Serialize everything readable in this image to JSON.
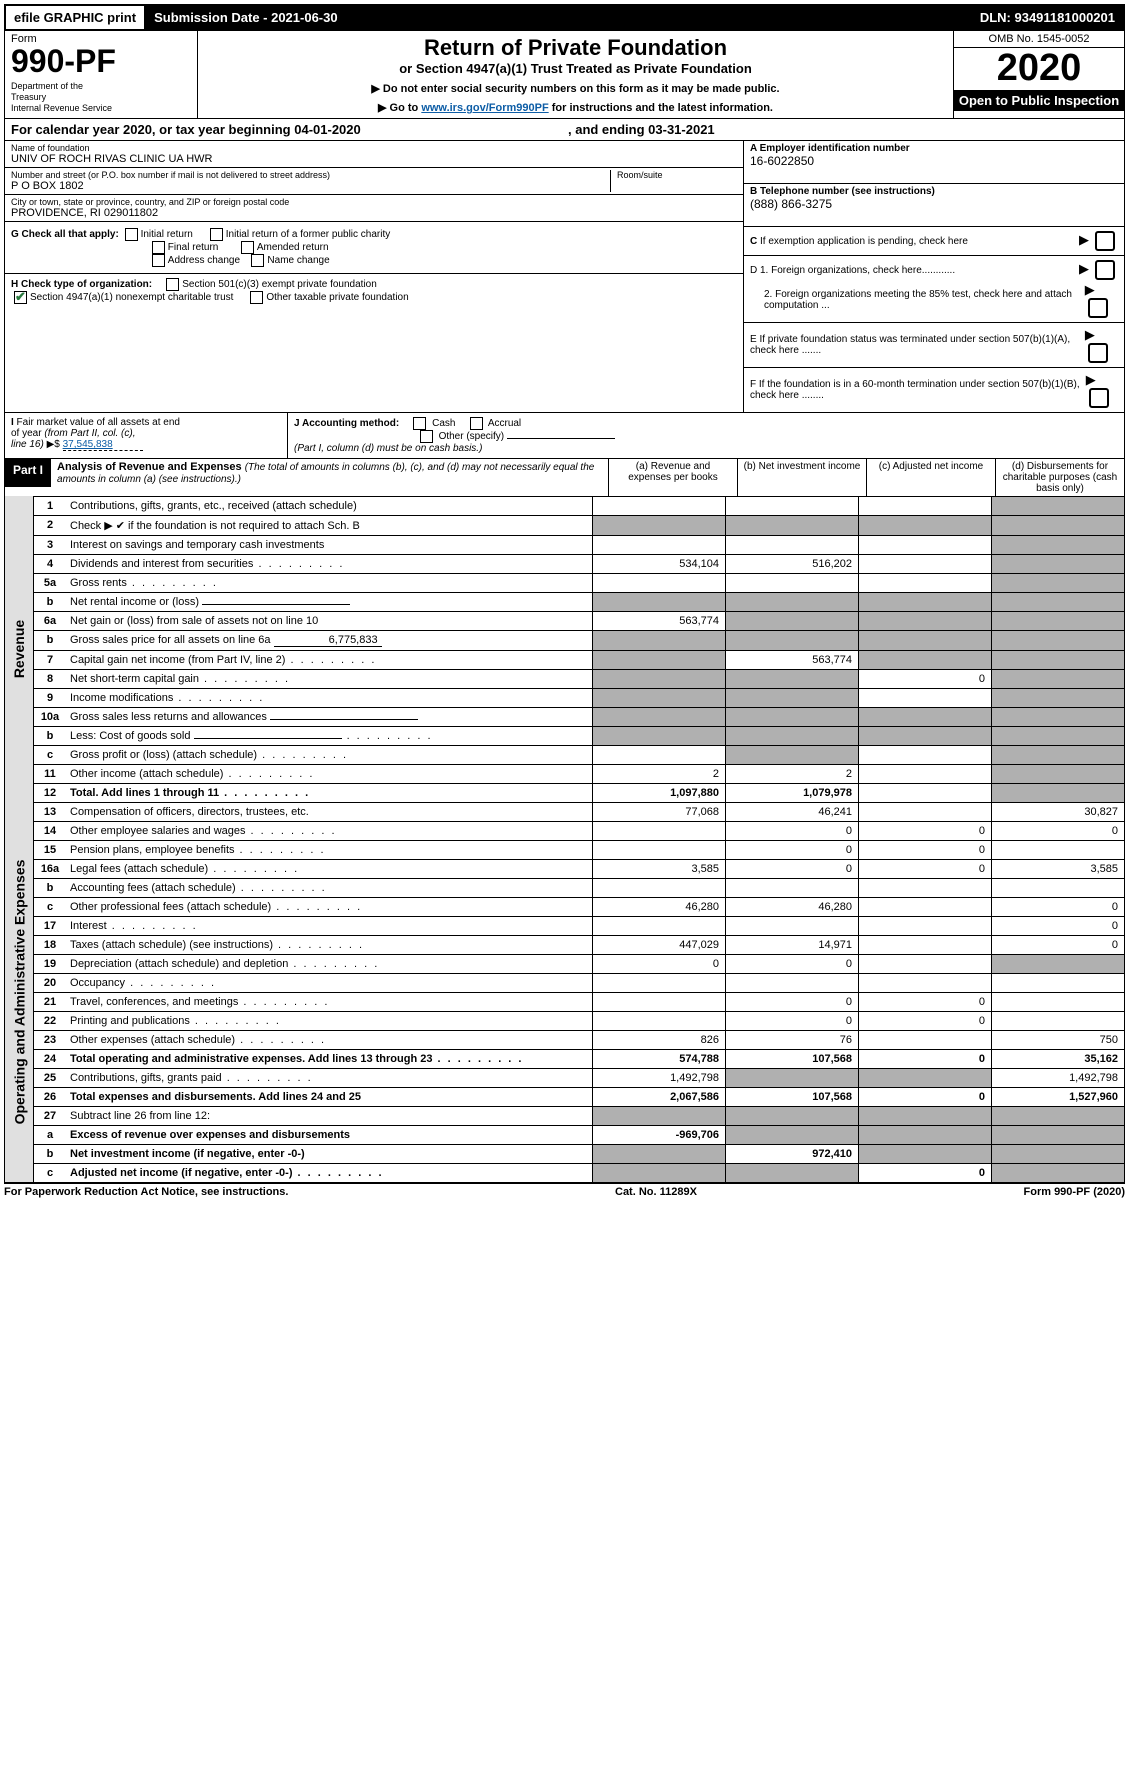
{
  "topbar": {
    "efile": "efile GRAPHIC print",
    "submission": "Submission Date - 2021-06-30",
    "dln": "DLN: 93491181000201"
  },
  "header": {
    "form_label": "Form",
    "form_number": "990-PF",
    "dept": "Department of the Treasury\nInternal Revenue Service",
    "title": "Return of Private Foundation",
    "subtitle": "or Section 4947(a)(1) Trust Treated as Private Foundation",
    "notice1": "▶ Do not enter social security numbers on this form as it may be made public.",
    "notice2_pre": "▶ Go to ",
    "notice2_link": "www.irs.gov/Form990PF",
    "notice2_post": " for instructions and the latest information.",
    "omb": "OMB No. 1545-0052",
    "year": "2020",
    "open": "Open to Public Inspection"
  },
  "cal": {
    "text_pre": "For calendar year 2020, or tax year beginning ",
    "begin": "04-01-2020",
    "text_mid": " , and ending ",
    "end": "03-31-2021"
  },
  "info": {
    "name_label": "Name of foundation",
    "name": "UNIV OF ROCH RIVAS CLINIC UA HWR",
    "addr_label": "Number and street (or P.O. box number if mail is not delivered to street address)",
    "addr": "P O BOX 1802",
    "room_label": "Room/suite",
    "city_label": "City or town, state or province, country, and ZIP or foreign postal code",
    "city": "PROVIDENCE, RI  029011802",
    "ein_label": "A Employer identification number",
    "ein": "16-6022850",
    "phone_label": "B Telephone number (see instructions)",
    "phone": "(888) 866-3275",
    "c_label": "C If exemption application is pending, check here",
    "d1_label": "D 1. Foreign organizations, check here............",
    "d2_label": "2. Foreign organizations meeting the 85% test, check here and attach computation ...",
    "e_label": "E If private foundation status was terminated under section 507(b)(1)(A), check here .......",
    "f_label": "F If the foundation is in a 60-month termination under section 507(b)(1)(B), check here ........"
  },
  "g": {
    "label": "G Check all that apply:",
    "initial": "Initial return",
    "initial_former": "Initial return of a former public charity",
    "final": "Final return",
    "amended": "Amended return",
    "address": "Address change",
    "name": "Name change"
  },
  "h": {
    "label": "H Check type of organization:",
    "s501": "Section 501(c)(3) exempt private foundation",
    "s4947": "Section 4947(a)(1) nonexempt charitable trust",
    "other": "Other taxable private foundation"
  },
  "i": {
    "label": "I Fair market value of all assets at end of year (from Part II, col. (c), line 16) ▶$",
    "value": "37,545,838"
  },
  "j": {
    "label": "J Accounting method:",
    "cash": "Cash",
    "accrual": "Accrual",
    "other": "Other (specify)",
    "note": "(Part I, column (d) must be on cash basis.)"
  },
  "part1": {
    "tag": "Part I",
    "title": "Analysis of Revenue and Expenses",
    "subtitle": "(The total of amounts in columns (b), (c), and (d) may not necessarily equal the amounts in column (a) (see instructions).)",
    "col_a": "(a) Revenue and expenses per books",
    "col_b": "(b) Net investment income",
    "col_c": "(c) Adjusted net income",
    "col_d": "(d) Disbursements for charitable purposes (cash basis only)",
    "revenue_label": "Revenue",
    "expenses_label": "Operating and Administrative Expenses"
  },
  "rows_rev": [
    {
      "n": "1",
      "txt": "Contributions, gifts, grants, etc., received (attach schedule)",
      "a": "",
      "b": "",
      "c": "",
      "d": "",
      "shade_d": true
    },
    {
      "n": "2",
      "txt": "Check ▶ ✔ if the foundation is not required to attach Sch. B",
      "a": "",
      "b": "",
      "c": "",
      "d": "",
      "shade_a": true,
      "shade_b": true,
      "shade_c": true,
      "shade_d": true
    },
    {
      "n": "3",
      "txt": "Interest on savings and temporary cash investments",
      "a": "",
      "b": "",
      "c": "",
      "d": "",
      "shade_d": true
    },
    {
      "n": "4",
      "txt": "Dividends and interest from securities",
      "a": "534,104",
      "b": "516,202",
      "c": "",
      "d": "",
      "shade_d": true,
      "dots": true
    },
    {
      "n": "5a",
      "txt": "Gross rents",
      "a": "",
      "b": "",
      "c": "",
      "d": "",
      "shade_d": true,
      "dots": true
    },
    {
      "n": "b",
      "txt": "Net rental income or (loss)",
      "a": "",
      "b": "",
      "c": "",
      "d": "",
      "shade_a": true,
      "shade_b": true,
      "shade_c": true,
      "shade_d": true,
      "inline_field": true
    },
    {
      "n": "6a",
      "txt": "Net gain or (loss) from sale of assets not on line 10",
      "a": "563,774",
      "b": "",
      "c": "",
      "d": "",
      "shade_b": true,
      "shade_c": true,
      "shade_d": true
    },
    {
      "n": "b",
      "txt": "Gross sales price for all assets on line 6a",
      "a": "",
      "b": "",
      "c": "",
      "d": "",
      "shade_a": true,
      "shade_b": true,
      "shade_c": true,
      "shade_d": true,
      "inline_val": "6,775,833"
    },
    {
      "n": "7",
      "txt": "Capital gain net income (from Part IV, line 2)",
      "a": "",
      "b": "563,774",
      "c": "",
      "d": "",
      "shade_a": true,
      "shade_c": true,
      "shade_d": true,
      "dots": true
    },
    {
      "n": "8",
      "txt": "Net short-term capital gain",
      "a": "",
      "b": "",
      "c": "0",
      "d": "",
      "shade_a": true,
      "shade_b": true,
      "shade_d": true,
      "dots": true
    },
    {
      "n": "9",
      "txt": "Income modifications",
      "a": "",
      "b": "",
      "c": "",
      "d": "",
      "shade_a": true,
      "shade_b": true,
      "shade_d": true,
      "dots": true
    },
    {
      "n": "10a",
      "txt": "Gross sales less returns and allowances",
      "a": "",
      "b": "",
      "c": "",
      "d": "",
      "shade_a": true,
      "shade_b": true,
      "shade_c": true,
      "shade_d": true,
      "inline_field": true
    },
    {
      "n": "b",
      "txt": "Less: Cost of goods sold",
      "a": "",
      "b": "",
      "c": "",
      "d": "",
      "shade_a": true,
      "shade_b": true,
      "shade_c": true,
      "shade_d": true,
      "inline_field": true,
      "dots": true
    },
    {
      "n": "c",
      "txt": "Gross profit or (loss) (attach schedule)",
      "a": "",
      "b": "",
      "c": "",
      "d": "",
      "shade_b": true,
      "shade_d": true,
      "dots": true
    },
    {
      "n": "11",
      "txt": "Other income (attach schedule)",
      "a": "2",
      "b": "2",
      "c": "",
      "d": "",
      "shade_d": true,
      "dots": true
    },
    {
      "n": "12",
      "txt": "Total. Add lines 1 through 11",
      "a": "1,097,880",
      "b": "1,079,978",
      "c": "",
      "d": "",
      "shade_d": true,
      "bold": true,
      "dots": true
    }
  ],
  "rows_exp": [
    {
      "n": "13",
      "txt": "Compensation of officers, directors, trustees, etc.",
      "a": "77,068",
      "b": "46,241",
      "c": "",
      "d": "30,827"
    },
    {
      "n": "14",
      "txt": "Other employee salaries and wages",
      "a": "",
      "b": "0",
      "c": "0",
      "d": "0",
      "dots": true
    },
    {
      "n": "15",
      "txt": "Pension plans, employee benefits",
      "a": "",
      "b": "0",
      "c": "0",
      "d": "",
      "dots": true
    },
    {
      "n": "16a",
      "txt": "Legal fees (attach schedule)",
      "a": "3,585",
      "b": "0",
      "c": "0",
      "d": "3,585",
      "dots": true
    },
    {
      "n": "b",
      "txt": "Accounting fees (attach schedule)",
      "a": "",
      "b": "",
      "c": "",
      "d": "",
      "dots": true
    },
    {
      "n": "c",
      "txt": "Other professional fees (attach schedule)",
      "a": "46,280",
      "b": "46,280",
      "c": "",
      "d": "0",
      "dots": true
    },
    {
      "n": "17",
      "txt": "Interest",
      "a": "",
      "b": "",
      "c": "",
      "d": "0",
      "dots": true
    },
    {
      "n": "18",
      "txt": "Taxes (attach schedule) (see instructions)",
      "a": "447,029",
      "b": "14,971",
      "c": "",
      "d": "0",
      "dots": true
    },
    {
      "n": "19",
      "txt": "Depreciation (attach schedule) and depletion",
      "a": "0",
      "b": "0",
      "c": "",
      "d": "",
      "shade_d": true,
      "dots": true
    },
    {
      "n": "20",
      "txt": "Occupancy",
      "a": "",
      "b": "",
      "c": "",
      "d": "",
      "dots": true
    },
    {
      "n": "21",
      "txt": "Travel, conferences, and meetings",
      "a": "",
      "b": "0",
      "c": "0",
      "d": "",
      "dots": true
    },
    {
      "n": "22",
      "txt": "Printing and publications",
      "a": "",
      "b": "0",
      "c": "0",
      "d": "",
      "dots": true
    },
    {
      "n": "23",
      "txt": "Other expenses (attach schedule)",
      "a": "826",
      "b": "76",
      "c": "",
      "d": "750",
      "dots": true
    },
    {
      "n": "24",
      "txt": "Total operating and administrative expenses. Add lines 13 through 23",
      "a": "574,788",
      "b": "107,568",
      "c": "0",
      "d": "35,162",
      "bold": true,
      "dots": true
    },
    {
      "n": "25",
      "txt": "Contributions, gifts, grants paid",
      "a": "1,492,798",
      "b": "",
      "c": "",
      "d": "1,492,798",
      "shade_b": true,
      "shade_c": true,
      "dots": true
    },
    {
      "n": "26",
      "txt": "Total expenses and disbursements. Add lines 24 and 25",
      "a": "2,067,586",
      "b": "107,568",
      "c": "0",
      "d": "1,527,960",
      "bold": true
    },
    {
      "n": "27",
      "txt": "Subtract line 26 from line 12:",
      "a": "",
      "b": "",
      "c": "",
      "d": "",
      "shade_a": true,
      "shade_b": true,
      "shade_c": true,
      "shade_d": true
    },
    {
      "n": "a",
      "txt": "Excess of revenue over expenses and disbursements",
      "a": "-969,706",
      "b": "",
      "c": "",
      "d": "",
      "shade_b": true,
      "shade_c": true,
      "shade_d": true,
      "bold": true
    },
    {
      "n": "b",
      "txt": "Net investment income (if negative, enter -0-)",
      "a": "",
      "b": "972,410",
      "c": "",
      "d": "",
      "shade_a": true,
      "shade_c": true,
      "shade_d": true,
      "bold": true
    },
    {
      "n": "c",
      "txt": "Adjusted net income (if negative, enter -0-)",
      "a": "",
      "b": "",
      "c": "0",
      "d": "",
      "shade_a": true,
      "shade_b": true,
      "shade_d": true,
      "bold": true,
      "dots": true
    }
  ],
  "footer": {
    "left": "For Paperwork Reduction Act Notice, see instructions.",
    "mid": "Cat. No. 11289X",
    "right": "Form 990-PF (2020)"
  }
}
